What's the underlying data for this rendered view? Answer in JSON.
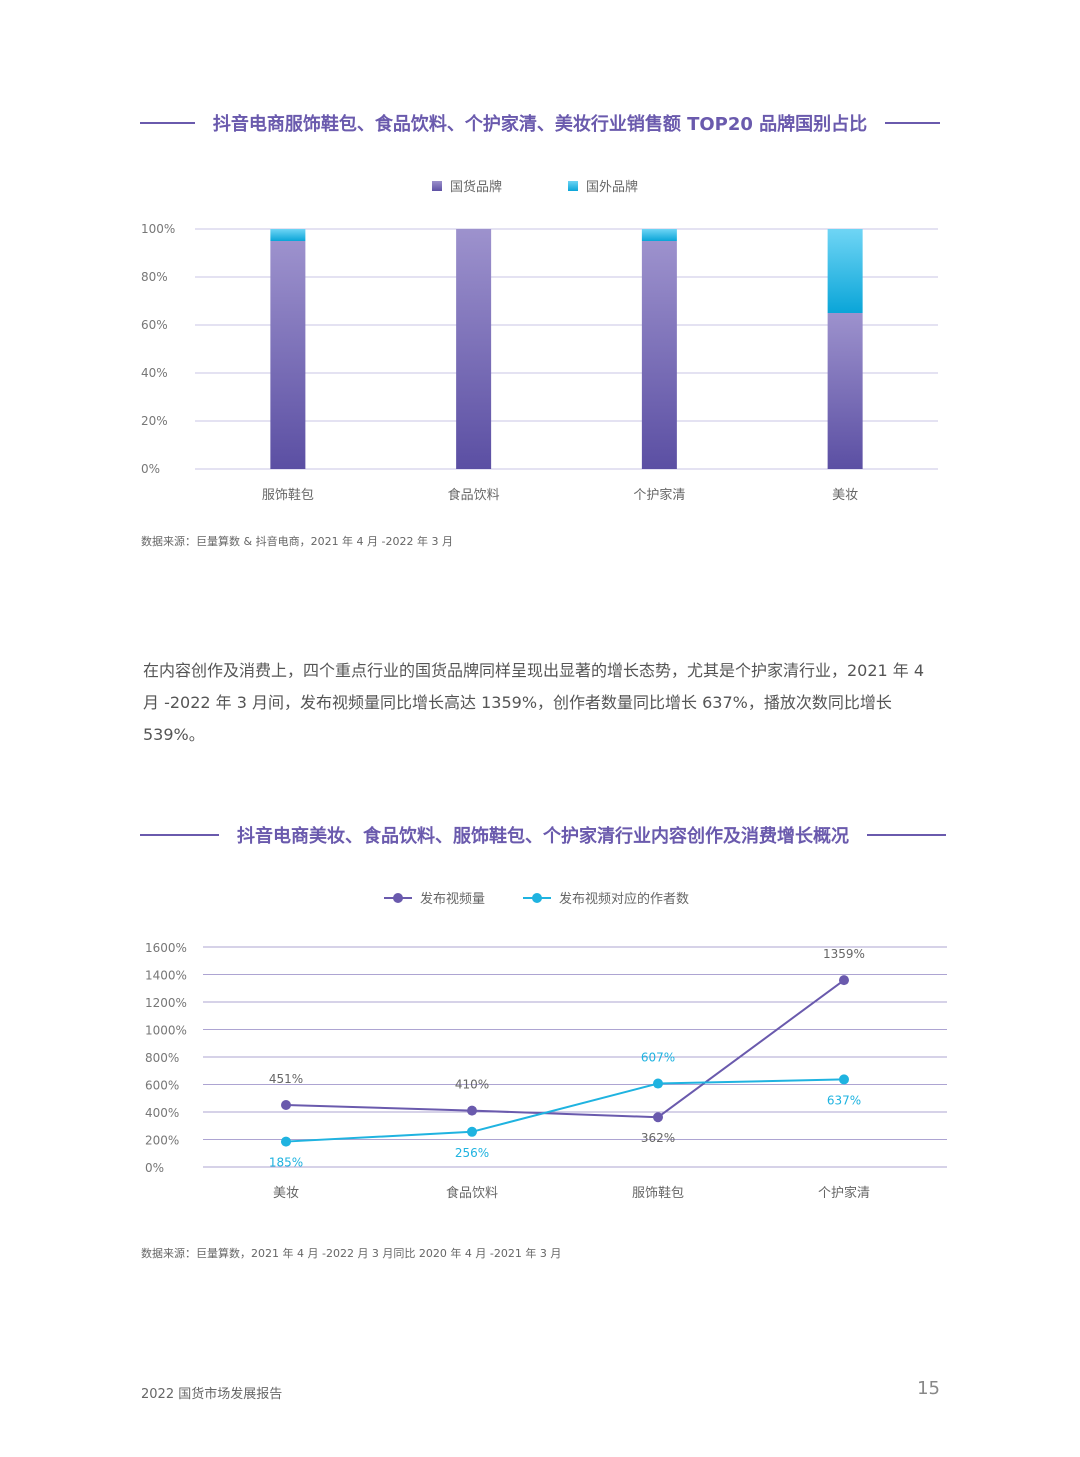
{
  "chart1": {
    "title": "抖音电商服饰鞋包、食品饮料、个护家清、美妆行业销售额 TOP20 品牌国别占比",
    "legend": [
      {
        "label": "国货品牌",
        "color": "#6a5aad"
      },
      {
        "label": "国外品牌",
        "color": "#1fb3e0"
      }
    ],
    "source": "数据来源：巨量算数 & 抖音电商，2021 年 4 月 -2022 年 3 月"
  },
  "chart2": {
    "title": "抖音电商美妆、食品饮料、服饰鞋包、个护家清行业内容创作及消费增长概况",
    "legend": [
      {
        "label": "发布视频量",
        "color": "#6a5aad"
      },
      {
        "label": "发布视频对应的作者数",
        "color": "#1fb3e0"
      }
    ],
    "source": "数据来源：巨量算数，2021 年 4 月 -2022 月 3 月同比 2020 年 4 月 -2021 年 3 月"
  },
  "paragraph": "在内容创作及消费上，四个重点行业的国货品牌同样呈现出显著的增长态势，尤其是个护家清行业，2021 年 4 月 -2022 年 3 月间，发布视频量同比增长高达 1359%，创作者数量同比增长 637%，播放次数同比增长 539%。",
  "footer": {
    "report": "2022 国货市场发展报告",
    "page": "15"
  },
  "chart_data": [
    {
      "type": "bar",
      "stacked": true,
      "categories": [
        "服饰鞋包",
        "食品饮料",
        "个护家清",
        "美妆"
      ],
      "series": [
        {
          "name": "国货品牌",
          "values": [
            95,
            100,
            95,
            65
          ],
          "color": "#6a5aad"
        },
        {
          "name": "国外品牌",
          "values": [
            5,
            0,
            5,
            35
          ],
          "color": "#1fb3e0"
        }
      ],
      "yticks": [
        "0%",
        "20%",
        "40%",
        "60%",
        "80%",
        "100%"
      ],
      "ylim": [
        0,
        100
      ],
      "grid": true,
      "legend_position": "top"
    },
    {
      "type": "line",
      "categories": [
        "美妆",
        "食品饮料",
        "服饰鞋包",
        "个护家清"
      ],
      "series": [
        {
          "name": "发布视频量",
          "values": [
            451,
            410,
            362,
            1359
          ],
          "labels": [
            "451%",
            "410%",
            "362%",
            "1359%"
          ],
          "color": "#6a5aad"
        },
        {
          "name": "发布视频对应的作者数",
          "values": [
            185,
            256,
            607,
            637
          ],
          "labels": [
            "185%",
            "256%",
            "607%",
            "637%"
          ],
          "color": "#1fb3e0"
        }
      ],
      "yticks": [
        "0%",
        "200%",
        "400%",
        "600%",
        "800%",
        "1000%",
        "1200%",
        "1400%",
        "1600%"
      ],
      "ylim": [
        0,
        1600
      ],
      "grid": true,
      "legend_position": "top"
    }
  ]
}
